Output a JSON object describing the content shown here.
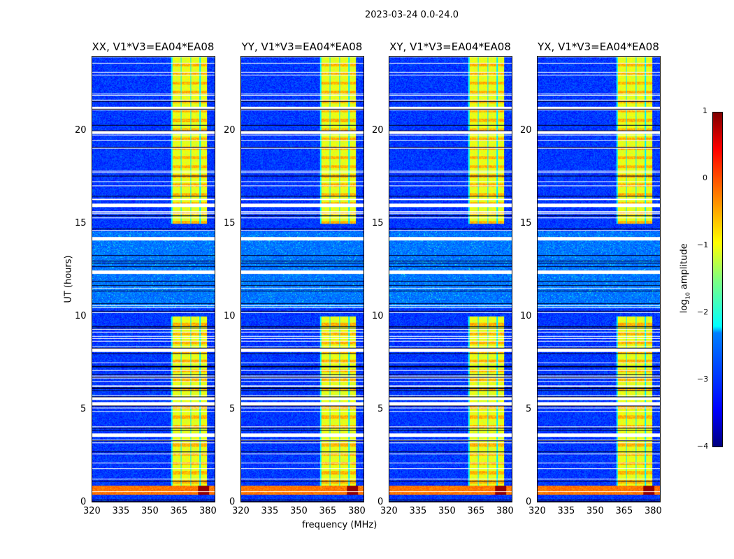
{
  "chart_data": {
    "type": "heatmap",
    "title": "2023-03-24 0.0-24.0",
    "xlabel": "frequency (MHz)",
    "ylabel": "UT (hours)",
    "xlim": [
      320,
      384
    ],
    "ylim": [
      0,
      24
    ],
    "xticks": [
      "320",
      "335",
      "350",
      "365",
      "380"
    ],
    "yticks": [
      "0",
      "5",
      "10",
      "15",
      "20"
    ],
    "panels": [
      {
        "title": "XX, V1*V3=EA04*EA08"
      },
      {
        "title": "YY, V1*V3=EA04*EA08"
      },
      {
        "title": "XY, V1*V3=EA04*EA08"
      },
      {
        "title": "YX, V1*V3=EA04*EA08"
      }
    ],
    "colorbar": {
      "label": "log10 amplitude",
      "label_main": "log",
      "label_sub": "10",
      "label_rest": " amplitude",
      "range": [
        -4,
        1
      ],
      "ticks": [
        "1",
        "0",
        "−1",
        "−2",
        "−3",
        "−4"
      ],
      "colormap": "jet"
    },
    "features": {
      "background_level": -3.1,
      "rfi_band_mhz": [
        361,
        380
      ],
      "rfi_band_level": -1.0,
      "rfi_active_hours": [
        [
          0.9,
          10.0
        ],
        [
          15.0,
          24.0
        ]
      ],
      "strong_band_hours": [
        0.4,
        0.9
      ],
      "noisy_hours": [
        10.5,
        14.6
      ],
      "flagged_hours": [
        3.6,
        5.3,
        5.6,
        19.95,
        21.2,
        16.0,
        8.2,
        12.4,
        14.2
      ]
    }
  }
}
